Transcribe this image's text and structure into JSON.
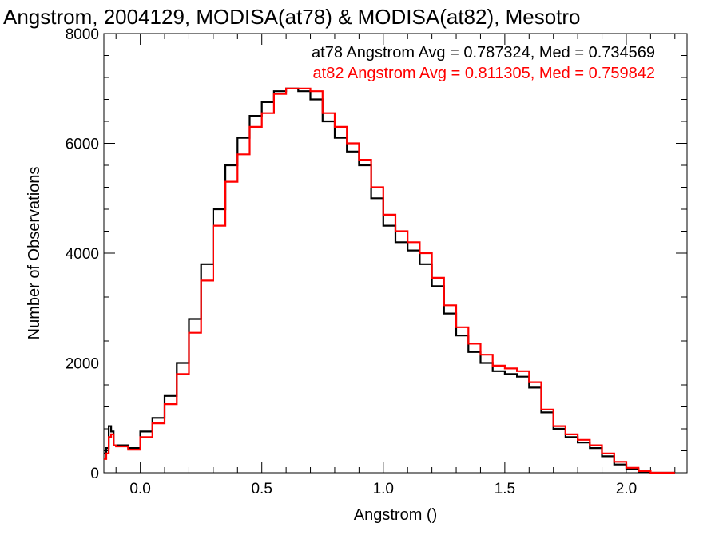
{
  "chart_data": {
    "type": "line",
    "title": "Angstrom, 2004129, MODISA(at78) & MODISA(at82), Mesotro",
    "xlabel": "Angstrom ()",
    "ylabel": "Number of Observations",
    "xlim": [
      -0.15,
      2.25
    ],
    "ylim": [
      0,
      8000
    ],
    "xticks": [
      "0.0",
      "0.5",
      "1.0",
      "1.5",
      "2.0"
    ],
    "yticks": [
      "0",
      "2000",
      "4000",
      "6000",
      "8000"
    ],
    "annotations": [
      {
        "text": "at78 Angstrom Avg = 0.787324, Med = 0.734569",
        "color": "#000000"
      },
      {
        "text": "at82 Angstrom Avg = 0.811305, Med = 0.759842",
        "color": "#ff0000"
      }
    ],
    "series": [
      {
        "color": "#000000",
        "x": [
          -0.15,
          -0.14,
          -0.13,
          -0.12,
          -0.11,
          -0.1,
          -0.05,
          0.0,
          0.05,
          0.1,
          0.15,
          0.2,
          0.25,
          0.3,
          0.35,
          0.4,
          0.45,
          0.5,
          0.55,
          0.6,
          0.65,
          0.7,
          0.75,
          0.8,
          0.85,
          0.9,
          0.95,
          1.0,
          1.05,
          1.1,
          1.15,
          1.2,
          1.25,
          1.3,
          1.35,
          1.4,
          1.45,
          1.5,
          1.55,
          1.6,
          1.65,
          1.7,
          1.75,
          1.8,
          1.85,
          1.9,
          1.95,
          2.0,
          2.05,
          2.1,
          2.15,
          2.2
        ],
        "y": [
          350,
          450,
          850,
          750,
          500,
          500,
          450,
          750,
          1000,
          1400,
          2000,
          2800,
          3800,
          4800,
          5600,
          6100,
          6500,
          6750,
          6950,
          7000,
          6950,
          6800,
          6400,
          6100,
          5850,
          5600,
          5000,
          4500,
          4200,
          4050,
          3800,
          3400,
          2900,
          2500,
          2200,
          2000,
          1850,
          1800,
          1750,
          1550,
          1100,
          800,
          650,
          550,
          450,
          300,
          150,
          70,
          20,
          0,
          0,
          0
        ]
      },
      {
        "color": "#ff0000",
        "x": [
          -0.15,
          -0.14,
          -0.13,
          -0.12,
          -0.11,
          -0.1,
          -0.05,
          0.0,
          0.05,
          0.1,
          0.15,
          0.2,
          0.25,
          0.3,
          0.35,
          0.4,
          0.45,
          0.5,
          0.55,
          0.6,
          0.65,
          0.7,
          0.75,
          0.8,
          0.85,
          0.9,
          0.95,
          1.0,
          1.05,
          1.1,
          1.15,
          1.2,
          1.25,
          1.3,
          1.35,
          1.4,
          1.45,
          1.5,
          1.55,
          1.6,
          1.65,
          1.7,
          1.75,
          1.8,
          1.85,
          1.9,
          1.95,
          2.0,
          2.05,
          2.1,
          2.15,
          2.2
        ],
        "y": [
          250,
          350,
          650,
          700,
          500,
          480,
          420,
          650,
          900,
          1250,
          1800,
          2550,
          3500,
          4500,
          5300,
          5800,
          6300,
          6550,
          6900,
          7000,
          7000,
          6950,
          6550,
          6300,
          6000,
          5700,
          5200,
          4700,
          4400,
          4200,
          4000,
          3550,
          3050,
          2650,
          2350,
          2150,
          1950,
          1900,
          1850,
          1650,
          1150,
          850,
          700,
          600,
          500,
          350,
          200,
          90,
          30,
          0,
          0,
          0
        ]
      }
    ]
  }
}
